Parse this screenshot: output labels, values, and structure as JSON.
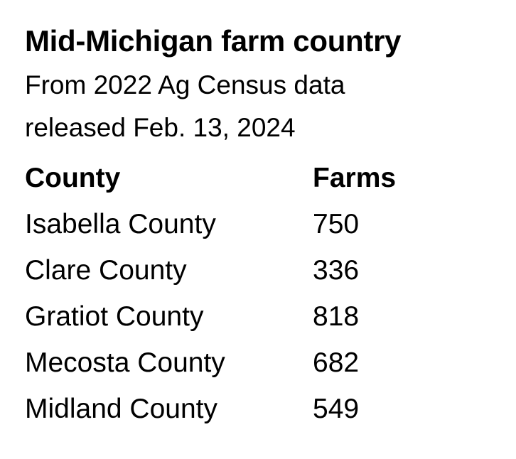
{
  "header": {
    "title": "Mid-Michigan farm country",
    "subtitle": "From 2022 Ag Census data released Feb. 13, 2024"
  },
  "table": {
    "columns": [
      "County",
      "Farms"
    ],
    "rows": [
      [
        "Isabella County",
        750
      ],
      [
        "Clare County",
        336
      ],
      [
        "Gratiot County",
        818
      ],
      [
        "Mecosta County",
        682
      ],
      [
        "Midland County",
        549
      ]
    ]
  }
}
